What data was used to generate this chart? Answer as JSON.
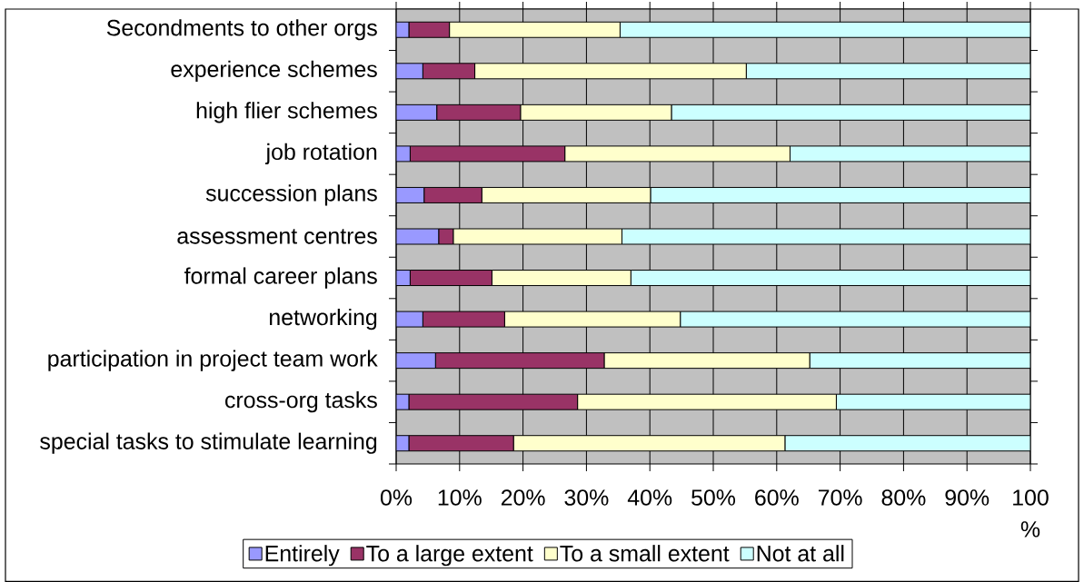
{
  "chart_data": {
    "type": "bar",
    "orientation": "horizontal",
    "stacked": true,
    "categories": [
      "Secondments to other orgs",
      "experience schemes",
      "high flier schemes",
      "job rotation",
      "succession plans",
      "assessment centres",
      "formal career plans",
      "networking",
      "participation in project team work",
      "cross-org tasks",
      "special tasks to stimulate learning"
    ],
    "series": [
      {
        "name": "Entirely",
        "color": "#9999ff",
        "values": [
          2.0,
          4.2,
          6.4,
          2.2,
          4.4,
          6.7,
          2.2,
          4.2,
          6.2,
          2.0,
          2.0
        ]
      },
      {
        "name": "To a large extent",
        "color": "#993366",
        "values": [
          6.4,
          8.2,
          13.2,
          24.4,
          9.1,
          2.3,
          12.9,
          12.9,
          26.6,
          26.6,
          16.5
        ]
      },
      {
        "name": "To a small extent",
        "color": "#ffffcc",
        "values": [
          26.9,
          42.8,
          23.8,
          35.5,
          26.6,
          26.6,
          21.9,
          27.7,
          32.4,
          40.8,
          42.8
        ]
      },
      {
        "name": "Not at all",
        "color": "#ccffff",
        "values": [
          64.7,
          44.8,
          56.6,
          37.9,
          59.9,
          64.4,
          63.0,
          55.2,
          34.8,
          30.6,
          38.7
        ]
      }
    ],
    "xlim": [
      0,
      100
    ],
    "xticks": [
      {
        "value": 0,
        "label": "0%"
      },
      {
        "value": 10,
        "label": "10%"
      },
      {
        "value": 20,
        "label": "20%"
      },
      {
        "value": 30,
        "label": "30%"
      },
      {
        "value": 40,
        "label": "40%"
      },
      {
        "value": 50,
        "label": "50%"
      },
      {
        "value": 60,
        "label": "60%"
      },
      {
        "value": 70,
        "label": "70%"
      },
      {
        "value": 80,
        "label": "80%"
      },
      {
        "value": 90,
        "label": "90%"
      },
      {
        "value": 100,
        "label": "100 %"
      }
    ],
    "grid": "x",
    "legend": "bottom"
  }
}
